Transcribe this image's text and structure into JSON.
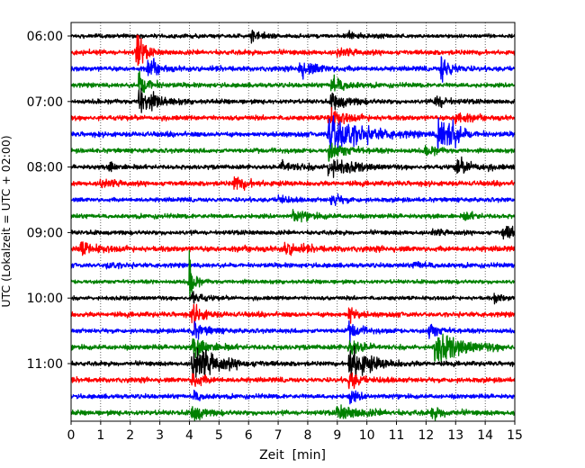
{
  "chart_data": {
    "type": "line",
    "title": "",
    "xlabel": "Zeit  [min]",
    "ylabel": "UTC (Lokalzeit = UTC + 02:00)",
    "xlim": [
      0,
      15
    ],
    "x_ticks": [
      "0",
      "1",
      "2",
      "3",
      "4",
      "5",
      "6",
      "7",
      "8",
      "9",
      "10",
      "11",
      "12",
      "13",
      "14",
      "15"
    ],
    "y_ticks": [
      "06:00",
      "07:00",
      "08:00",
      "09:00",
      "10:00",
      "11:00"
    ],
    "grid": "vertical dotted",
    "trace_interval_min": 15,
    "colors": [
      "#000000",
      "#ff0000",
      "#0000ff",
      "#008000"
    ],
    "traces": [
      {
        "start": "06:00",
        "color": "#000000",
        "noise": 0.18,
        "events": [
          {
            "t": 6.1,
            "amp": 0.5,
            "dur": 0.35
          },
          {
            "t": 9.4,
            "amp": 0.4,
            "dur": 0.3
          }
        ]
      },
      {
        "start": "06:15",
        "color": "#ff0000",
        "noise": 0.22,
        "events": [
          {
            "t": 2.2,
            "amp": 2.4,
            "dur": 0.2
          },
          {
            "t": 9.0,
            "amp": 0.5,
            "dur": 0.4
          }
        ]
      },
      {
        "start": "06:30",
        "color": "#0000ff",
        "noise": 0.22,
        "events": [
          {
            "t": 2.6,
            "amp": 0.9,
            "dur": 0.3
          },
          {
            "t": 7.7,
            "amp": 0.7,
            "dur": 0.6
          },
          {
            "t": 12.5,
            "amp": 1.4,
            "dur": 0.3
          }
        ]
      },
      {
        "start": "06:45",
        "color": "#008000",
        "noise": 0.2,
        "events": [
          {
            "t": 2.3,
            "amp": 1.2,
            "dur": 0.3
          },
          {
            "t": 8.8,
            "amp": 1.0,
            "dur": 0.4
          }
        ]
      },
      {
        "start": "07:00",
        "color": "#000000",
        "noise": 0.2,
        "events": [
          {
            "t": 2.3,
            "amp": 1.4,
            "dur": 0.5
          },
          {
            "t": 8.8,
            "amp": 0.8,
            "dur": 0.5
          },
          {
            "t": 12.3,
            "amp": 0.8,
            "dur": 0.3
          }
        ]
      },
      {
        "start": "07:15",
        "color": "#ff0000",
        "noise": 0.22,
        "events": [
          {
            "t": 8.7,
            "amp": 0.9,
            "dur": 0.5
          },
          {
            "t": 13.0,
            "amp": 0.8,
            "dur": 0.3
          }
        ]
      },
      {
        "start": "07:30",
        "color": "#0000ff",
        "noise": 0.22,
        "events": [
          {
            "t": 8.7,
            "amp": 2.3,
            "dur": 0.9
          },
          {
            "t": 12.4,
            "amp": 1.8,
            "dur": 0.4
          },
          {
            "t": 12.8,
            "amp": 1.3,
            "dur": 0.2
          }
        ]
      },
      {
        "start": "07:45",
        "color": "#008000",
        "noise": 0.2,
        "events": [
          {
            "t": 8.7,
            "amp": 0.8,
            "dur": 0.6
          },
          {
            "t": 12.0,
            "amp": 0.5,
            "dur": 0.3
          }
        ]
      },
      {
        "start": "08:00",
        "color": "#000000",
        "noise": 0.2,
        "events": [
          {
            "t": 1.3,
            "amp": 0.4,
            "dur": 0.2
          },
          {
            "t": 7.1,
            "amp": 0.5,
            "dur": 0.6
          },
          {
            "t": 8.7,
            "amp": 0.9,
            "dur": 0.7
          },
          {
            "t": 13.0,
            "amp": 0.7,
            "dur": 0.6
          }
        ]
      },
      {
        "start": "08:15",
        "color": "#ff0000",
        "noise": 0.22,
        "events": [
          {
            "t": 1.0,
            "amp": 0.5,
            "dur": 0.4
          },
          {
            "t": 5.5,
            "amp": 0.6,
            "dur": 0.5
          }
        ]
      },
      {
        "start": "08:30",
        "color": "#0000ff",
        "noise": 0.2,
        "events": [
          {
            "t": 7.0,
            "amp": 0.5,
            "dur": 0.2
          },
          {
            "t": 8.8,
            "amp": 0.6,
            "dur": 0.3
          }
        ]
      },
      {
        "start": "08:45",
        "color": "#008000",
        "noise": 0.2,
        "events": [
          {
            "t": 7.5,
            "amp": 0.5,
            "dur": 0.5
          },
          {
            "t": 13.3,
            "amp": 0.4,
            "dur": 0.3
          }
        ]
      },
      {
        "start": "09:00",
        "color": "#000000",
        "noise": 0.2,
        "events": [
          {
            "t": 12.2,
            "amp": 0.3,
            "dur": 0.4
          },
          {
            "t": 14.6,
            "amp": 0.7,
            "dur": 0.5
          }
        ]
      },
      {
        "start": "09:15",
        "color": "#ff0000",
        "noise": 0.25,
        "events": [
          {
            "t": 0.3,
            "amp": 0.6,
            "dur": 0.5
          },
          {
            "t": 7.2,
            "amp": 0.5,
            "dur": 0.5
          }
        ]
      },
      {
        "start": "09:30",
        "color": "#0000ff",
        "noise": 0.2,
        "events": [
          {
            "t": 1.2,
            "amp": 0.3,
            "dur": 0.4
          },
          {
            "t": 11.6,
            "amp": 0.3,
            "dur": 0.5
          }
        ]
      },
      {
        "start": "09:45",
        "color": "#008000",
        "noise": 0.18,
        "events": [
          {
            "t": 4.0,
            "amp": 2.2,
            "dur": 0.15
          }
        ]
      },
      {
        "start": "10:00",
        "color": "#000000",
        "noise": 0.18,
        "events": [
          {
            "t": 4.1,
            "amp": 0.6,
            "dur": 0.3
          },
          {
            "t": 14.3,
            "amp": 0.4,
            "dur": 0.3
          }
        ]
      },
      {
        "start": "10:15",
        "color": "#ff0000",
        "noise": 0.22,
        "events": [
          {
            "t": 4.1,
            "amp": 1.1,
            "dur": 0.3
          },
          {
            "t": 9.4,
            "amp": 1.0,
            "dur": 0.2
          }
        ]
      },
      {
        "start": "10:30",
        "color": "#0000ff",
        "noise": 0.2,
        "events": [
          {
            "t": 4.1,
            "amp": 0.8,
            "dur": 0.4
          },
          {
            "t": 9.4,
            "amp": 0.8,
            "dur": 0.3
          },
          {
            "t": 12.1,
            "amp": 0.8,
            "dur": 0.3
          }
        ]
      },
      {
        "start": "10:45",
        "color": "#008000",
        "noise": 0.22,
        "events": [
          {
            "t": 4.1,
            "amp": 0.8,
            "dur": 0.5
          },
          {
            "t": 9.4,
            "amp": 0.8,
            "dur": 0.4
          },
          {
            "t": 12.3,
            "amp": 1.4,
            "dur": 0.9
          }
        ]
      },
      {
        "start": "11:00",
        "color": "#000000",
        "noise": 0.2,
        "events": [
          {
            "t": 4.1,
            "amp": 2.2,
            "dur": 0.7
          },
          {
            "t": 9.4,
            "amp": 2.0,
            "dur": 0.6
          }
        ]
      },
      {
        "start": "11:15",
        "color": "#ff0000",
        "noise": 0.22,
        "events": [
          {
            "t": 4.1,
            "amp": 0.9,
            "dur": 0.3
          },
          {
            "t": 9.4,
            "amp": 0.9,
            "dur": 0.3
          }
        ]
      },
      {
        "start": "11:30",
        "color": "#0000ff",
        "noise": 0.2,
        "events": [
          {
            "t": 4.1,
            "amp": 0.6,
            "dur": 0.3
          },
          {
            "t": 9.4,
            "amp": 0.6,
            "dur": 0.3
          }
        ]
      },
      {
        "start": "11:45",
        "color": "#008000",
        "noise": 0.22,
        "events": [
          {
            "t": 4.1,
            "amp": 1.0,
            "dur": 0.3
          },
          {
            "t": 9.0,
            "amp": 0.6,
            "dur": 0.8
          },
          {
            "t": 12.2,
            "amp": 0.5,
            "dur": 0.4
          }
        ]
      }
    ]
  }
}
